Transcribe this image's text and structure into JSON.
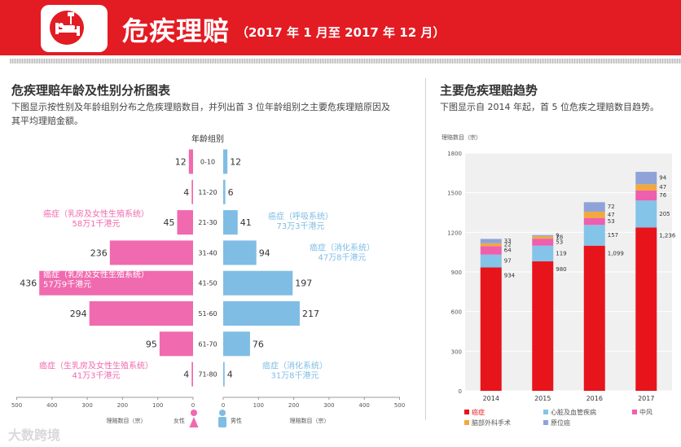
{
  "header": {
    "title": "危疾理赔",
    "subtitle": "（2017 年 1 月至 2017 年 12 月）"
  },
  "left_section": {
    "title": "危疾理赔年龄及性别分析图表",
    "description": "下图显示按性别及年龄组别分布之危疾理赔数目，并列出首 3 位年龄组别之主要危疾理赔原因及其平均理赔金额。"
  },
  "right_section": {
    "title": "主要危疾理赔趋势",
    "description": "下图显示自 2014 年起，首 5 位危疾之理赔数目趋势。"
  },
  "watermark": "大数跨境",
  "colors": {
    "brand_red": "#e31b23",
    "female": "#f06aaf",
    "male": "#7fbde4",
    "cancer": "#e8141b",
    "heart": "#84c4e8",
    "stroke": "#ee5fae",
    "brain": "#f2a93b",
    "parkinson": "#8fa3d9"
  },
  "chart_data": [
    {
      "type": "bar",
      "orientation": "horizontal",
      "title": "年龄组别",
      "categories": [
        "0-10",
        "11-20",
        "21-30",
        "31-40",
        "41-50",
        "51-60",
        "61-70",
        "71-80"
      ],
      "series": [
        {
          "name": "女性",
          "values": [
            12,
            4,
            45,
            236,
            436,
            294,
            95,
            4
          ]
        },
        {
          "name": "男性",
          "values": [
            12,
            6,
            41,
            94,
            197,
            217,
            76,
            4
          ]
        }
      ],
      "xlabel_left": "理赔数目（宗）",
      "xlabel_right": "理赔数目（宗）",
      "xlim": [
        0,
        500
      ],
      "x_ticks": [
        "500",
        "400",
        "300",
        "200",
        "100",
        "0"
      ],
      "annotations": [
        {
          "side": "female",
          "age": "21-30",
          "line1": "癌症（乳房及女性生殖系统）",
          "line2": "58万1千港元"
        },
        {
          "side": "female",
          "age": "41-50",
          "line1": "癌症（乳房及女性生殖系统）",
          "line2": "57万9千港元"
        },
        {
          "side": "female",
          "age": "71-80",
          "line1": "癌症（生乳房及女性生殖系统）",
          "line2": "41万3千港元"
        },
        {
          "side": "male",
          "age": "21-30",
          "line1": "癌症（呼吸系统）",
          "line2": "73万3千港元"
        },
        {
          "side": "male",
          "age": "31-40",
          "line1": "癌症（消化系统）",
          "line2": "47万8千港元"
        },
        {
          "side": "male",
          "age": "71-80",
          "line1": "癌症（消化系统）",
          "line2": "31万8千港元"
        }
      ]
    },
    {
      "type": "bar",
      "stacked": true,
      "categories": [
        "2014",
        "2015",
        "2016",
        "2017"
      ],
      "ylabel": "理赔数目（宗）",
      "ylim": [
        0,
        1800
      ],
      "y_ticks": [
        0,
        300,
        600,
        900,
        1200,
        1500,
        1800
      ],
      "series": [
        {
          "name": "癌症",
          "values": [
            934,
            980,
            1099,
            1236
          ]
        },
        {
          "name": "心脏及血管疾病",
          "values": [
            97,
            119,
            157,
            205
          ]
        },
        {
          "name": "中风",
          "values": [
            64,
            53,
            53,
            76
          ]
        },
        {
          "name": "脑部外科手术",
          "values": [
            22,
            18,
            47,
            47
          ]
        },
        {
          "name": "原位癌",
          "values": [
            33,
            9,
            72,
            94
          ]
        }
      ],
      "data_labels": [
        [
          "934",
          "97",
          "64",
          "22",
          "33"
        ],
        [
          "980",
          "119",
          "53",
          "18",
          "9"
        ],
        [
          "1,099",
          "157",
          "53",
          "47",
          "72"
        ],
        [
          "1,236",
          "205",
          "76",
          "47",
          "94"
        ]
      ],
      "grid": true,
      "legend_position": "bottom"
    }
  ]
}
